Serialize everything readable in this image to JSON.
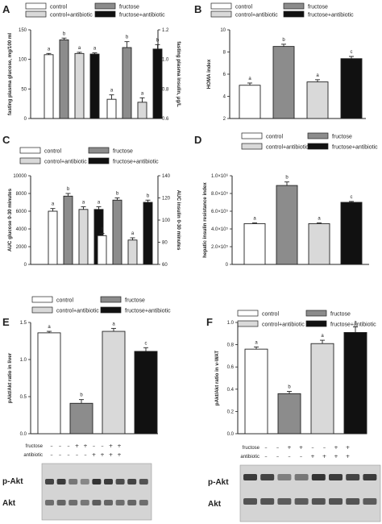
{
  "colors": {
    "control": "#ffffff",
    "fructose": "#8c8c8c",
    "control_antibiotic": "#d9d9d9",
    "fructose_antibiotic": "#111111",
    "axis": "#222222",
    "blot_bg": "#d4d4d4",
    "band": "#2a2a2a"
  },
  "legend": {
    "control": "control",
    "fructose": "fructose",
    "control_antibiotic": "control+antibiotic",
    "fructose_antibiotic": "fructose+antibiotic"
  },
  "blots": {
    "E": {
      "row1_label": "fructose",
      "row2_label": "antibiotic",
      "row1_marks": [
        "–",
        "–",
        "–",
        "+",
        "+",
        "–",
        "–",
        "+",
        "+"
      ],
      "row2_marks": [
        "–",
        "–",
        "–",
        "–",
        "–",
        "+",
        "+",
        "+",
        "+"
      ],
      "protein1": "p-Akt",
      "protein2": "Akt"
    },
    "F": {
      "row1_label": "fructose",
      "row2_label": "antibiotic",
      "row1_marks": [
        "–",
        "–",
        "+",
        "+",
        "–",
        "–",
        "+",
        "+"
      ],
      "row2_marks": [
        "–",
        "–",
        "–",
        "–",
        "+",
        "+",
        "+",
        "+"
      ],
      "protein1": "p-Akt",
      "protein2": "Akt"
    }
  },
  "chart_data": [
    {
      "panel": "A",
      "type": "bar",
      "groups": [
        {
          "name": "glucose",
          "axis": "left",
          "values": [
            108,
            133,
            110,
            109
          ],
          "errors": [
            2,
            3,
            2,
            2
          ],
          "letters": [
            "a",
            "b",
            "a",
            "a"
          ]
        },
        {
          "name": "insulin",
          "axis": "right",
          "values": [
            0.73,
            1.08,
            0.71,
            1.07
          ],
          "errors": [
            0.03,
            0.04,
            0.03,
            0.03
          ],
          "letters": [
            "a",
            "b",
            "a",
            "b"
          ]
        }
      ],
      "ylabel": "fasting plasma glucose, mg/100 ml",
      "ylim": [
        0,
        150
      ],
      "yticks": [
        "0",
        "50",
        "100",
        "150"
      ],
      "ylabel_right": "fasting plasma insulin, μg/L",
      "ylim_right": [
        0.6,
        1.2
      ],
      "yticks_right": [
        "0.6",
        "0.8",
        "1.0",
        "1.2"
      ]
    },
    {
      "panel": "B",
      "type": "bar",
      "values": [
        5.0,
        8.5,
        5.3,
        7.4
      ],
      "errors": [
        0.2,
        0.2,
        0.2,
        0.2
      ],
      "letters": [
        "a",
        "b",
        "a",
        "c"
      ],
      "ylabel": "HOMA index",
      "ylim": [
        2,
        10
      ],
      "yticks": [
        "2",
        "4",
        "6",
        "8",
        "10"
      ]
    },
    {
      "panel": "C",
      "type": "bar",
      "groups": [
        {
          "name": "AUC glucose",
          "axis": "left",
          "values": [
            6000,
            7700,
            6200,
            6200
          ],
          "errors": [
            300,
            300,
            300,
            300
          ],
          "letters": [
            "a",
            "b",
            "a",
            "a"
          ]
        },
        {
          "name": "AUC insulin",
          "axis": "right",
          "values": [
            86,
            118,
            82,
            116
          ],
          "errors": [
            2,
            2,
            2,
            2
          ],
          "letters": [
            "a",
            "b",
            "a",
            "b"
          ]
        }
      ],
      "ylabel": "AUC glucose 0-30 minutes",
      "ylim": [
        0,
        10000
      ],
      "yticks": [
        "0",
        "2000",
        "4000",
        "6000",
        "8000",
        "10000"
      ],
      "ylabel_right": "AUC insulin 0-30 minutes",
      "ylim_right": [
        60,
        140
      ],
      "yticks_right": [
        "60",
        "80",
        "100",
        "120",
        "140"
      ]
    },
    {
      "panel": "D",
      "type": "bar",
      "values": [
        460000,
        890000,
        460000,
        700000
      ],
      "errors": [
        8000,
        40000,
        8000,
        10000
      ],
      "letters": [
        "a",
        "b",
        "a",
        "c"
      ],
      "ylabel": "hepatic insulin resistance index",
      "ylim": [
        0,
        1000000
      ],
      "yticks": [
        "0",
        "2.0×10⁵",
        "4.0×10⁵",
        "6.0×10⁵",
        "8.0×10⁵",
        "1.0×10⁶"
      ]
    },
    {
      "panel": "E",
      "type": "bar",
      "values": [
        1.36,
        0.41,
        1.38,
        1.11
      ],
      "errors": [
        0.02,
        0.05,
        0.04,
        0.05
      ],
      "letters": [
        "a",
        "b",
        "a",
        "c"
      ],
      "ylabel": "pAkt/Akt ratio in liver",
      "ylim": [
        0,
        1.5
      ],
      "yticks": [
        "0.0",
        "0.5",
        "1.0",
        "1.5"
      ]
    },
    {
      "panel": "F",
      "type": "bar",
      "values": [
        0.76,
        0.36,
        0.81,
        0.91
      ],
      "errors": [
        0.02,
        0.02,
        0.03,
        0.05
      ],
      "letters": [
        "a",
        "b",
        "a",
        "a"
      ],
      "ylabel": "pAkt/Akt ratio in v-WAT",
      "ylim": [
        0,
        1.0
      ],
      "yticks": [
        "0.0",
        "0.2",
        "0.4",
        "0.6",
        "0.8",
        "1.0"
      ]
    }
  ]
}
